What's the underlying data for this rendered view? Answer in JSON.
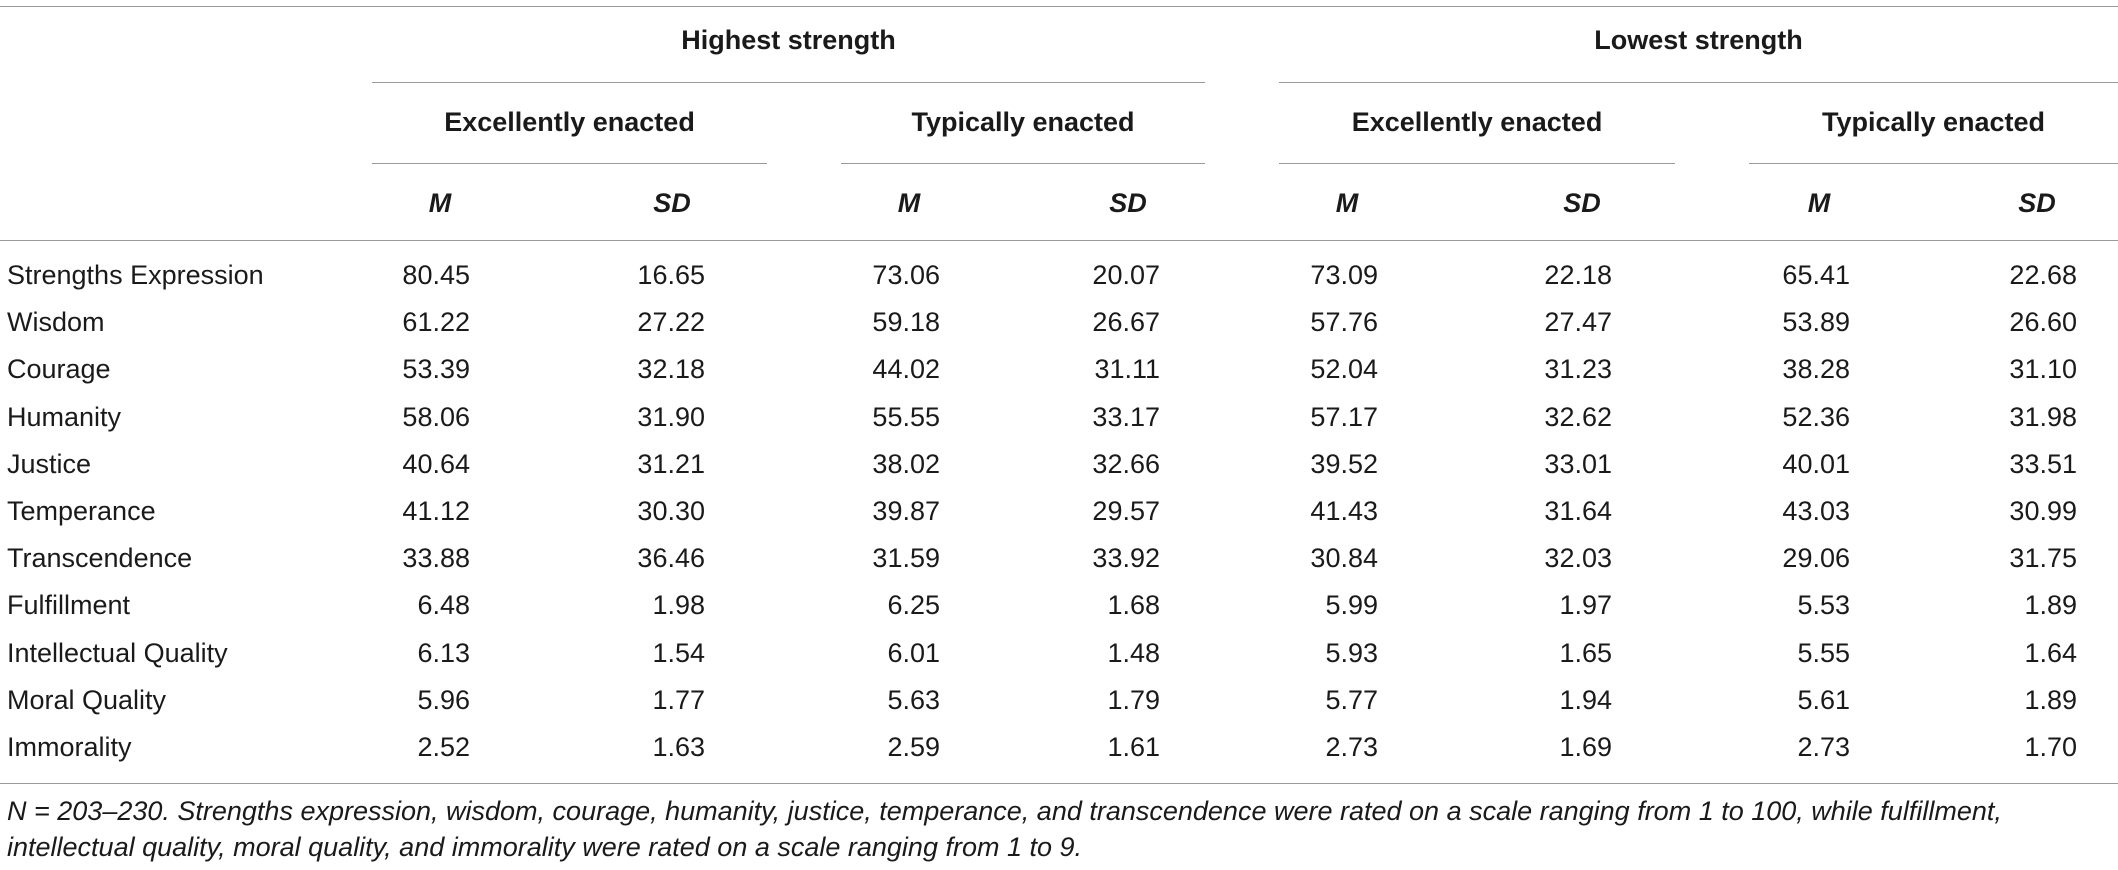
{
  "table": {
    "groups": [
      {
        "label": "Highest strength",
        "subgroups": [
          {
            "label": "Excellently enacted",
            "stats": [
              "M",
              "SD"
            ]
          },
          {
            "label": "Typically enacted",
            "stats": [
              "M",
              "SD"
            ]
          }
        ]
      },
      {
        "label": "Lowest strength",
        "subgroups": [
          {
            "label": "Excellently enacted",
            "stats": [
              "M",
              "SD"
            ]
          },
          {
            "label": "Typically enacted",
            "stats": [
              "M",
              "SD"
            ]
          }
        ]
      }
    ],
    "rows": [
      {
        "label": "Strengths Expression",
        "values": [
          "80.45",
          "16.65",
          "73.06",
          "20.07",
          "73.09",
          "22.18",
          "65.41",
          "22.68"
        ]
      },
      {
        "label": "Wisdom",
        "values": [
          "61.22",
          "27.22",
          "59.18",
          "26.67",
          "57.76",
          "27.47",
          "53.89",
          "26.60"
        ]
      },
      {
        "label": "Courage",
        "values": [
          "53.39",
          "32.18",
          "44.02",
          "31.11",
          "52.04",
          "31.23",
          "38.28",
          "31.10"
        ]
      },
      {
        "label": "Humanity",
        "values": [
          "58.06",
          "31.90",
          "55.55",
          "33.17",
          "57.17",
          "32.62",
          "52.36",
          "31.98"
        ]
      },
      {
        "label": "Justice",
        "values": [
          "40.64",
          "31.21",
          "38.02",
          "32.66",
          "39.52",
          "33.01",
          "40.01",
          "33.51"
        ]
      },
      {
        "label": "Temperance",
        "values": [
          "41.12",
          "30.30",
          "39.87",
          "29.57",
          "41.43",
          "31.64",
          "43.03",
          "30.99"
        ]
      },
      {
        "label": "Transcendence",
        "values": [
          "33.88",
          "36.46",
          "31.59",
          "33.92",
          "30.84",
          "32.03",
          "29.06",
          "31.75"
        ]
      },
      {
        "label": "Fulfillment",
        "values": [
          "6.48",
          "1.98",
          "6.25",
          "1.68",
          "5.99",
          "1.97",
          "5.53",
          "1.89"
        ]
      },
      {
        "label": "Intellectual Quality",
        "values": [
          "6.13",
          "1.54",
          "6.01",
          "1.48",
          "5.93",
          "1.65",
          "5.55",
          "1.64"
        ]
      },
      {
        "label": "Moral Quality",
        "values": [
          "5.96",
          "1.77",
          "5.63",
          "1.79",
          "5.77",
          "1.94",
          "5.61",
          "1.89"
        ]
      },
      {
        "label": "Immorality",
        "values": [
          "2.52",
          "1.63",
          "2.59",
          "1.61",
          "2.73",
          "1.69",
          "2.73",
          "1.70"
        ]
      }
    ],
    "footnote": "N = 203–230. Strengths expression, wisdom, courage, humanity, justice, temperance, and transcendence were rated on a scale ranging from 1 to 100, while fulfillment, intellectual quality, moral quality, and immorality were rated on a scale ranging from 1 to 9."
  }
}
